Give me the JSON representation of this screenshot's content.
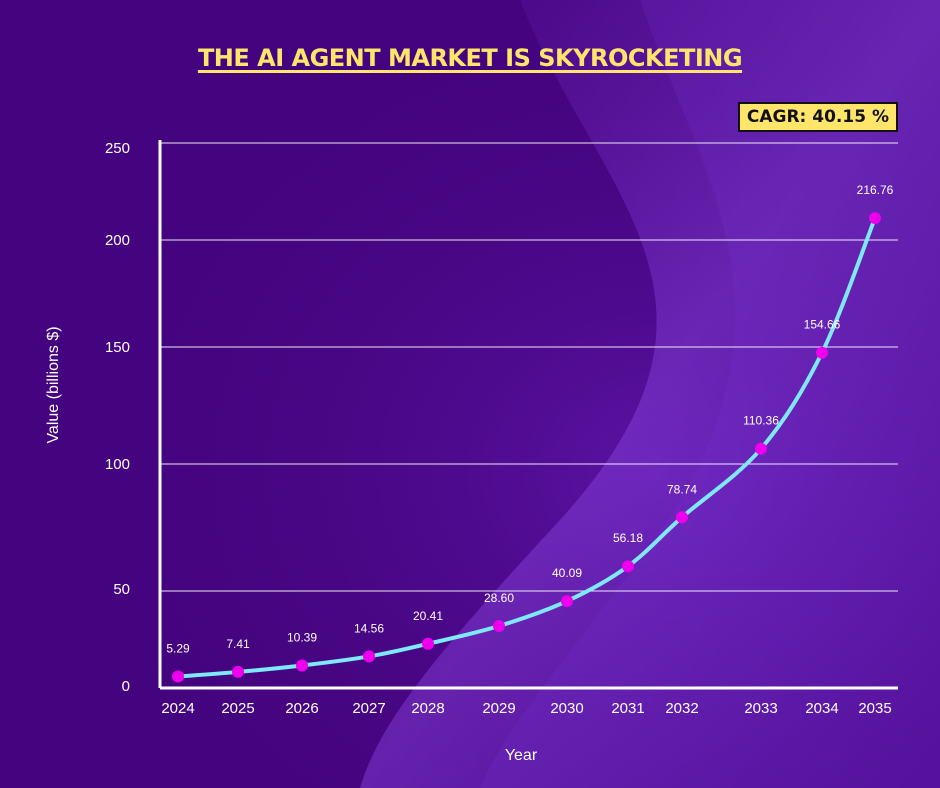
{
  "colors": {
    "background": "#45047f",
    "title": "#ffe66b",
    "line": "#7ee8ff",
    "marker": "#ee00ee",
    "grid": "#ffffff",
    "badge_bg": "#ffe66b"
  },
  "header": {
    "title": "THE AI AGENT MARKET IS SKYROCKETING",
    "cagr_label": "CAGR: 40.15 %"
  },
  "chart_data": {
    "type": "line",
    "title": "THE AI AGENT MARKET IS SKYROCKETING",
    "xlabel": "Year",
    "ylabel": "Value (billions $)",
    "ylim": [
      0,
      250
    ],
    "yticks": [
      0,
      50,
      100,
      150,
      200,
      250
    ],
    "grid": "horizontal",
    "x": [
      "2024",
      "2025",
      "2026",
      "2027",
      "2028",
      "2029",
      "2030",
      "2031",
      "2032",
      "2033",
      "2034",
      "2035"
    ],
    "series": [
      {
        "values": [
          5.29,
          7.41,
          10.39,
          14.56,
          20.41,
          28.6,
          40.09,
          56.18,
          78.74,
          110.36,
          154.66,
          216.76
        ],
        "labels": [
          "5.29",
          "7.41",
          "10.39",
          "14.56",
          "20.41",
          "28.60",
          "40.09",
          "56.18",
          "78.74",
          "110.36",
          "154.66",
          "216.76"
        ]
      }
    ]
  }
}
